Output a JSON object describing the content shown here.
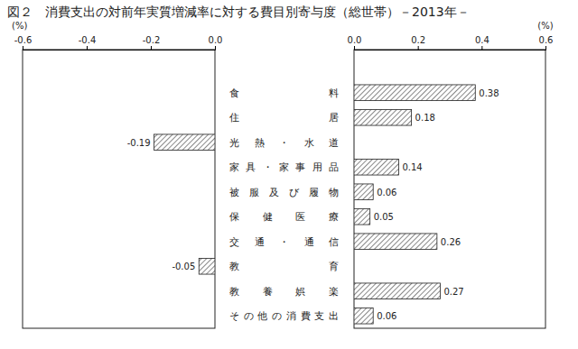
{
  "chart_data": {
    "type": "bar",
    "orientation": "horizontal",
    "title": "図２　消費支出の対前年実質増減率に対する費目別寄与度（総世帯）－2013年－",
    "x_label": "(%)",
    "categories": [
      "食料",
      "住居",
      "光熱・水道",
      "家具・家事用品",
      "被服及び履物",
      "保健医療",
      "交通・通信",
      "教育",
      "教養娯楽",
      "その他の消費支出"
    ],
    "values": [
      0.38,
      0.18,
      -0.19,
      0.14,
      0.06,
      0.05,
      0.26,
      -0.05,
      0.27,
      0.06
    ],
    "color": "#555555",
    "xlim": [
      -0.6,
      0.6
    ],
    "xticks": [
      -0.6,
      -0.4,
      -0.2,
      {
        "value": 0,
        "label": "0.0"
      },
      0.2,
      0.4,
      0.6
    ],
    "data_labels": true
  }
}
